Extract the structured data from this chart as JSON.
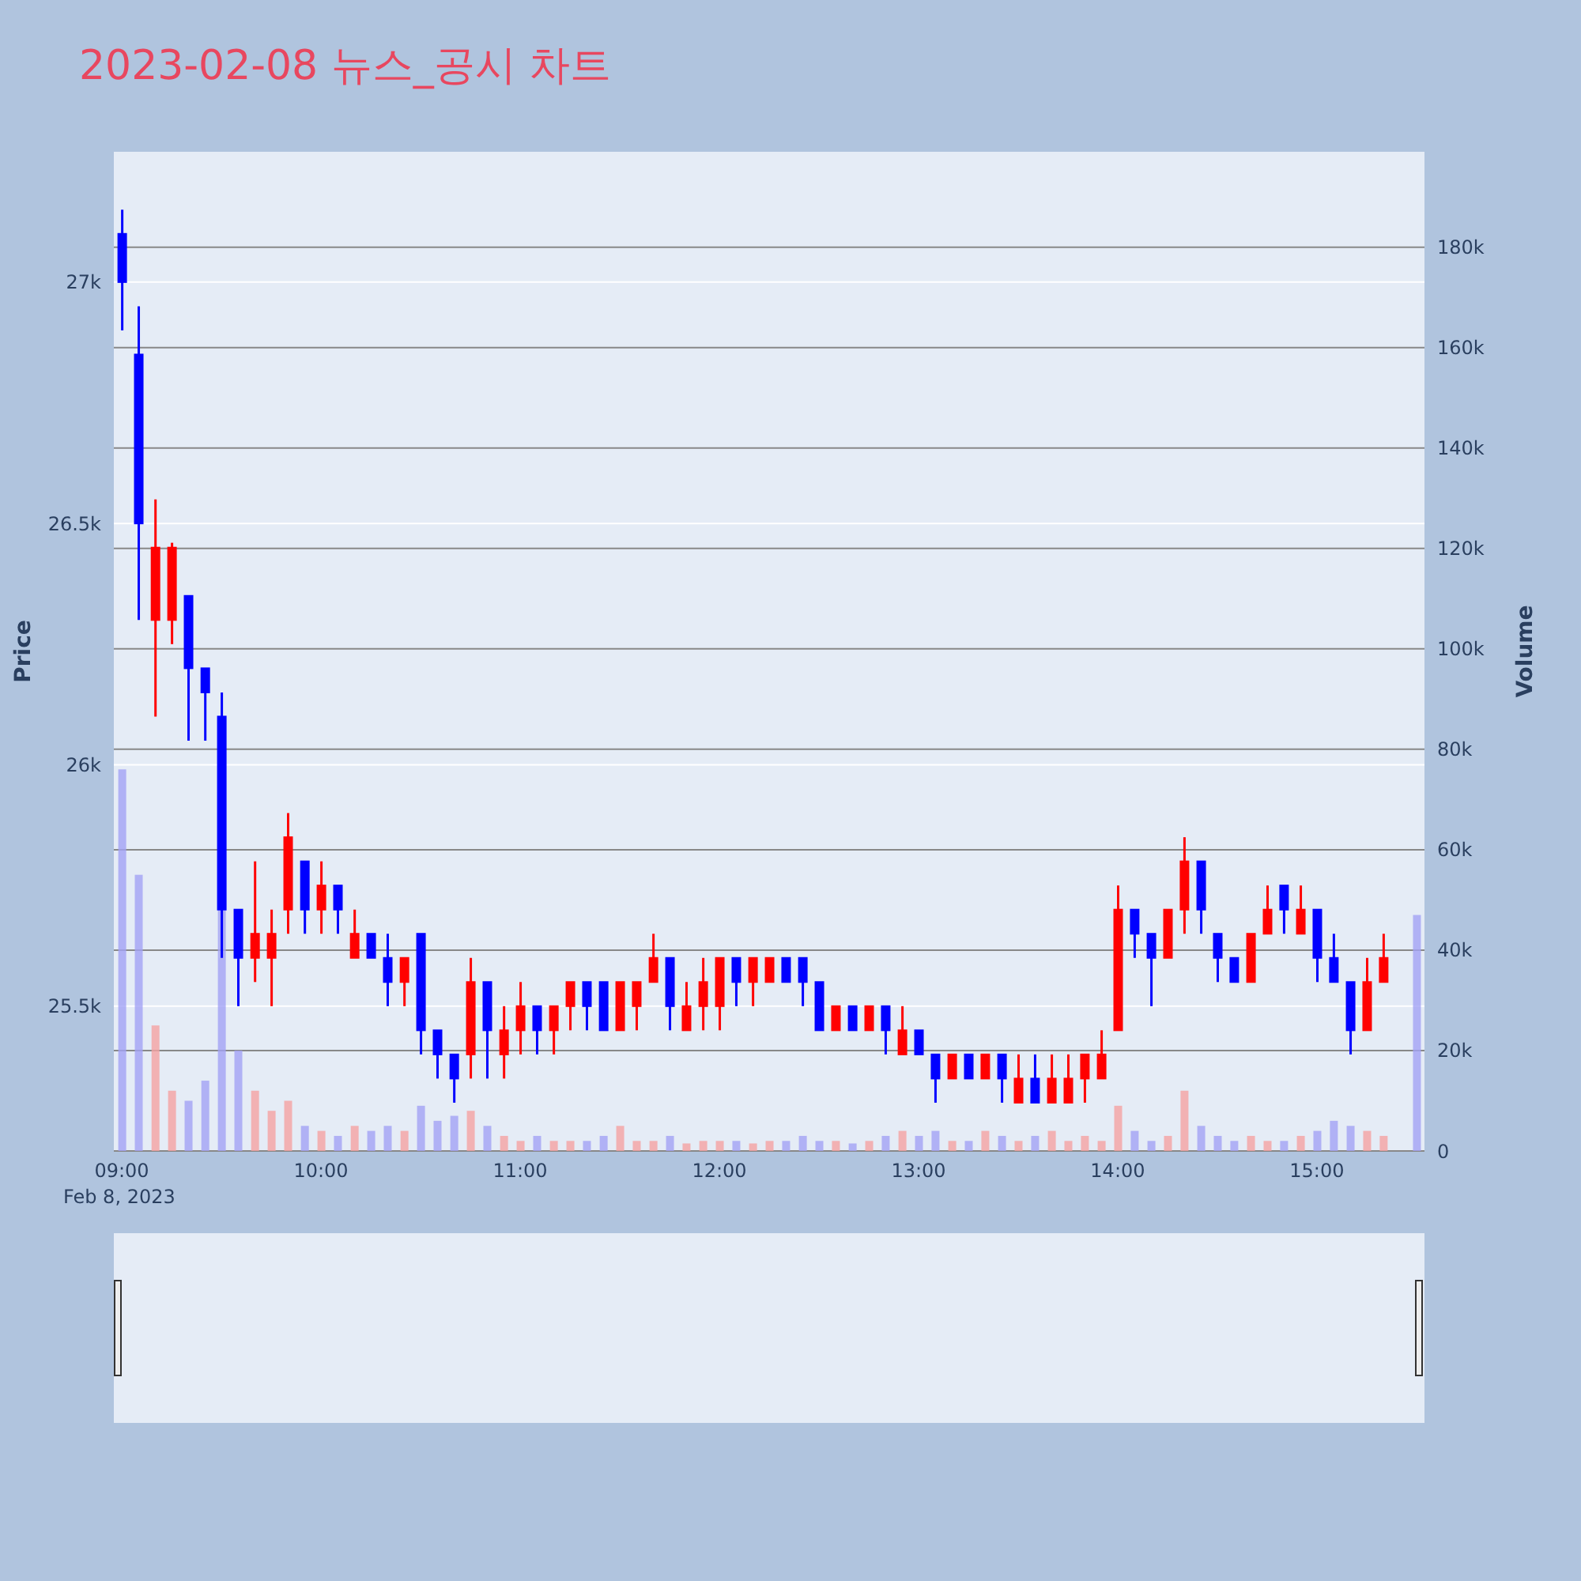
{
  "chart_data": {
    "type": "candlestick",
    "title": "2023-02-08 뉴스_공시 차트",
    "ylabel": "Price",
    "y2label": "Volume",
    "annotations": [
      "Feb 8, 2023"
    ],
    "x": [
      9,
      9.083,
      9.167,
      9.25,
      9.333,
      9.417,
      9.5,
      9.583,
      9.667,
      9.75,
      9.833,
      9.917,
      10,
      10.083,
      10.167,
      10.25,
      10.333,
      10.417,
      10.5,
      10.583,
      10.667,
      10.75,
      10.833,
      10.917,
      11,
      11.083,
      11.167,
      11.25,
      11.333,
      11.417,
      11.5,
      11.583,
      11.667,
      11.75,
      11.833,
      11.917,
      12,
      12.083,
      12.167,
      12.25,
      12.333,
      12.417,
      12.5,
      12.583,
      12.667,
      12.75,
      12.833,
      12.917,
      13,
      13.083,
      13.167,
      13.25,
      13.333,
      13.417,
      13.5,
      13.583,
      13.667,
      13.75,
      13.833,
      13.917,
      14,
      14.083,
      14.167,
      14.25,
      14.333,
      14.417,
      14.5,
      14.583,
      14.667,
      14.75,
      14.833,
      14.917,
      15,
      15.083,
      15.167,
      15.25,
      15.333
    ],
    "ohlc": [
      [
        27100,
        27150,
        26900,
        27000
      ],
      [
        26850,
        26950,
        26300,
        26500
      ],
      [
        26300,
        26550,
        26100,
        26450
      ],
      [
        26300,
        26460,
        26250,
        26450
      ],
      [
        26350,
        26350,
        26050,
        26200
      ],
      [
        26200,
        26200,
        26050,
        26150
      ],
      [
        26100,
        26150,
        25600,
        25700
      ],
      [
        25700,
        25700,
        25500,
        25600
      ],
      [
        25600,
        25800,
        25550,
        25650
      ],
      [
        25600,
        25700,
        25500,
        25650
      ],
      [
        25700,
        25900,
        25650,
        25850
      ],
      [
        25800,
        25800,
        25650,
        25700
      ],
      [
        25700,
        25800,
        25650,
        25750
      ],
      [
        25750,
        25750,
        25650,
        25700
      ],
      [
        25600,
        25700,
        25600,
        25650
      ],
      [
        25650,
        25650,
        25600,
        25600
      ],
      [
        25600,
        25650,
        25500,
        25550
      ],
      [
        25550,
        25600,
        25500,
        25600
      ],
      [
        25650,
        25650,
        25400,
        25450
      ],
      [
        25450,
        25450,
        25350,
        25400
      ],
      [
        25400,
        25400,
        25300,
        25350
      ],
      [
        25400,
        25600,
        25350,
        25550
      ],
      [
        25550,
        25550,
        25350,
        25450
      ],
      [
        25400,
        25500,
        25350,
        25450
      ],
      [
        25450,
        25550,
        25400,
        25500
      ],
      [
        25500,
        25500,
        25400,
        25450
      ],
      [
        25450,
        25500,
        25400,
        25500
      ],
      [
        25500,
        25550,
        25450,
        25550
      ],
      [
        25550,
        25550,
        25450,
        25500
      ],
      [
        25550,
        25550,
        25450,
        25450
      ],
      [
        25450,
        25550,
        25450,
        25550
      ],
      [
        25500,
        25550,
        25450,
        25550
      ],
      [
        25550,
        25650,
        25550,
        25600
      ],
      [
        25600,
        25600,
        25450,
        25500
      ],
      [
        25450,
        25550,
        25450,
        25500
      ],
      [
        25500,
        25600,
        25450,
        25550
      ],
      [
        25500,
        25600,
        25450,
        25600
      ],
      [
        25600,
        25600,
        25500,
        25550
      ],
      [
        25550,
        25600,
        25500,
        25600
      ],
      [
        25550,
        25600,
        25550,
        25600
      ],
      [
        25600,
        25600,
        25550,
        25550
      ],
      [
        25600,
        25600,
        25500,
        25550
      ],
      [
        25550,
        25550,
        25450,
        25450
      ],
      [
        25450,
        25500,
        25450,
        25500
      ],
      [
        25500,
        25500,
        25450,
        25450
      ],
      [
        25450,
        25500,
        25450,
        25500
      ],
      [
        25500,
        25500,
        25400,
        25450
      ],
      [
        25400,
        25500,
        25400,
        25450
      ],
      [
        25450,
        25450,
        25400,
        25400
      ],
      [
        25400,
        25400,
        25300,
        25350
      ],
      [
        25350,
        25400,
        25350,
        25400
      ],
      [
        25400,
        25400,
        25350,
        25350
      ],
      [
        25350,
        25400,
        25350,
        25400
      ],
      [
        25400,
        25400,
        25300,
        25350
      ],
      [
        25300,
        25400,
        25300,
        25350
      ],
      [
        25350,
        25400,
        25300,
        25300
      ],
      [
        25300,
        25400,
        25300,
        25350
      ],
      [
        25300,
        25400,
        25300,
        25350
      ],
      [
        25350,
        25400,
        25300,
        25400
      ],
      [
        25350,
        25450,
        25350,
        25400
      ],
      [
        25450,
        25750,
        25450,
        25700
      ],
      [
        25700,
        25700,
        25600,
        25650
      ],
      [
        25650,
        25650,
        25500,
        25600
      ],
      [
        25600,
        25700,
        25600,
        25700
      ],
      [
        25700,
        25850,
        25650,
        25800
      ],
      [
        25800,
        25800,
        25650,
        25700
      ],
      [
        25650,
        25650,
        25550,
        25600
      ],
      [
        25600,
        25600,
        25550,
        25550
      ],
      [
        25550,
        25650,
        25550,
        25650
      ],
      [
        25650,
        25750,
        25650,
        25700
      ],
      [
        25750,
        25750,
        25650,
        25700
      ],
      [
        25650,
        25750,
        25650,
        25700
      ],
      [
        25700,
        25700,
        25550,
        25600
      ],
      [
        25600,
        25650,
        25550,
        25550
      ],
      [
        25550,
        25550,
        25400,
        25450
      ],
      [
        25450,
        25600,
        25450,
        25550
      ],
      [
        25550,
        25650,
        25550,
        25600
      ]
    ],
    "colors": [
      "#0000ff",
      "#0000ff",
      "#ff0000",
      "#ff0000",
      "#0000ff",
      "#0000ff",
      "#0000ff",
      "#0000ff",
      "#ff0000",
      "#ff0000",
      "#ff0000",
      "#0000ff",
      "#ff0000",
      "#0000ff",
      "#ff0000",
      "#0000ff",
      "#0000ff",
      "#ff0000",
      "#0000ff",
      "#0000ff",
      "#0000ff",
      "#ff0000",
      "#0000ff",
      "#ff0000",
      "#ff0000",
      "#0000ff",
      "#ff0000",
      "#ff0000",
      "#0000ff",
      "#0000ff",
      "#ff0000",
      "#ff0000",
      "#ff0000",
      "#0000ff",
      "#ff0000",
      "#ff0000",
      "#ff0000",
      "#0000ff",
      "#ff0000",
      "#ff0000",
      "#0000ff",
      "#0000ff",
      "#0000ff",
      "#ff0000",
      "#0000ff",
      "#ff0000",
      "#0000ff",
      "#ff0000",
      "#0000ff",
      "#0000ff",
      "#ff0000",
      "#0000ff",
      "#ff0000",
      "#0000ff",
      "#ff0000",
      "#0000ff",
      "#ff0000",
      "#ff0000",
      "#ff0000",
      "#ff0000",
      "#ff0000",
      "#0000ff",
      "#0000ff",
      "#ff0000",
      "#ff0000",
      "#0000ff",
      "#0000ff",
      "#0000ff",
      "#ff0000",
      "#ff0000",
      "#0000ff",
      "#ff0000",
      "#0000ff",
      "#0000ff",
      "#0000ff",
      "#ff0000",
      "#ff0000"
    ],
    "series": [
      {
        "type": "bar",
        "axis": "y2",
        "x": [
          9,
          9.083,
          9.167,
          9.25,
          9.333,
          9.417,
          9.5,
          9.583,
          9.667,
          9.75,
          9.833,
          9.917,
          10,
          10.083,
          10.167,
          10.25,
          10.333,
          10.417,
          10.5,
          10.583,
          10.667,
          10.75,
          10.833,
          10.917,
          11,
          11.083,
          11.167,
          11.25,
          11.333,
          11.417,
          11.5,
          11.583,
          11.667,
          11.75,
          11.833,
          11.917,
          12,
          12.083,
          12.167,
          12.25,
          12.333,
          12.417,
          12.5,
          12.583,
          12.667,
          12.75,
          12.833,
          12.917,
          13,
          13.083,
          13.167,
          13.25,
          13.333,
          13.417,
          13.5,
          13.583,
          13.667,
          13.75,
          13.833,
          13.917,
          14,
          14.083,
          14.167,
          14.25,
          14.333,
          14.417,
          14.5,
          14.583,
          14.667,
          14.75,
          14.833,
          14.917,
          15,
          15.083,
          15.167,
          15.25,
          15.333,
          15.5
        ],
        "values": [
          76000,
          55000,
          25000,
          12000,
          10000,
          14000,
          48000,
          20000,
          12000,
          8000,
          10000,
          5000,
          4000,
          3000,
          5000,
          4000,
          5000,
          4000,
          9000,
          6000,
          7000,
          8000,
          5000,
          3000,
          2000,
          3000,
          2000,
          2000,
          2000,
          3000,
          5000,
          2000,
          2000,
          3000,
          1500,
          2000,
          2000,
          2000,
          1500,
          2000,
          2000,
          3000,
          2000,
          2000,
          1500,
          2000,
          3000,
          4000,
          3000,
          4000,
          2000,
          2000,
          4000,
          3000,
          2000,
          3000,
          4000,
          2000,
          3000,
          2000,
          9000,
          4000,
          2000,
          3000,
          12000,
          5000,
          3000,
          2000,
          3000,
          2000,
          2000,
          3000,
          4000,
          6000,
          5000,
          4000,
          3000,
          47000
        ],
        "colors": [
          "#a3a3f5",
          "#a3a3f5",
          "#f5a3a3",
          "#f5a3a3",
          "#a3a3f5",
          "#a3a3f5",
          "#a3a3f5",
          "#a3a3f5",
          "#f5a3a3",
          "#f5a3a3",
          "#f5a3a3",
          "#a3a3f5",
          "#f5a3a3",
          "#a3a3f5",
          "#f5a3a3",
          "#a3a3f5",
          "#a3a3f5",
          "#f5a3a3",
          "#a3a3f5",
          "#a3a3f5",
          "#a3a3f5",
          "#f5a3a3",
          "#a3a3f5",
          "#f5a3a3",
          "#f5a3a3",
          "#a3a3f5",
          "#f5a3a3",
          "#f5a3a3",
          "#a3a3f5",
          "#a3a3f5",
          "#f5a3a3",
          "#f5a3a3",
          "#f5a3a3",
          "#a3a3f5",
          "#f5a3a3",
          "#f5a3a3",
          "#f5a3a3",
          "#a3a3f5",
          "#f5a3a3",
          "#f5a3a3",
          "#a3a3f5",
          "#a3a3f5",
          "#a3a3f5",
          "#f5a3a3",
          "#a3a3f5",
          "#f5a3a3",
          "#a3a3f5",
          "#f5a3a3",
          "#a3a3f5",
          "#a3a3f5",
          "#f5a3a3",
          "#a3a3f5",
          "#f5a3a3",
          "#a3a3f5",
          "#f5a3a3",
          "#a3a3f5",
          "#f5a3a3",
          "#f5a3a3",
          "#f5a3a3",
          "#f5a3a3",
          "#f5a3a3",
          "#a3a3f5",
          "#a3a3f5",
          "#f5a3a3",
          "#f5a3a3",
          "#a3a3f5",
          "#a3a3f5",
          "#a3a3f5",
          "#f5a3a3",
          "#f5a3a3",
          "#a3a3f5",
          "#f5a3a3",
          "#a3a3f5",
          "#a3a3f5",
          "#a3a3f5",
          "#f5a3a3",
          "#f5a3a3",
          "#a3a3f5"
        ]
      }
    ],
    "xlim": [
      8.96,
      15.54
    ],
    "xticks": [
      {
        "value": 9,
        "label": "09:00"
      },
      {
        "value": 10,
        "label": "10:00"
      },
      {
        "value": 11,
        "label": "11:00"
      },
      {
        "value": 12,
        "label": "12:00"
      },
      {
        "value": 13,
        "label": "13:00"
      },
      {
        "value": 14,
        "label": "14:00"
      },
      {
        "value": 15,
        "label": "15:00"
      }
    ],
    "ylim": [
      25200,
      27270
    ],
    "yticks": [
      {
        "value": 25500,
        "label": "25.5k"
      },
      {
        "value": 26000,
        "label": "26k"
      },
      {
        "value": 26500,
        "label": "26.5k"
      },
      {
        "value": 27000,
        "label": "27k"
      }
    ],
    "y2lim": [
      0,
      199000
    ],
    "y2ticks": [
      0,
      {
        "value": 20000,
        "label": "20k"
      },
      {
        "value": 40000,
        "label": "40k"
      },
      {
        "value": 60000,
        "label": "60k"
      },
      {
        "value": 80000,
        "label": "80k"
      },
      {
        "value": 100000,
        "label": "100k"
      },
      {
        "value": 120000,
        "label": "120k"
      },
      {
        "value": 140000,
        "label": "140k"
      },
      {
        "value": 160000,
        "label": "160k"
      },
      {
        "value": 180000,
        "label": "180k"
      }
    ],
    "grid": "y"
  }
}
